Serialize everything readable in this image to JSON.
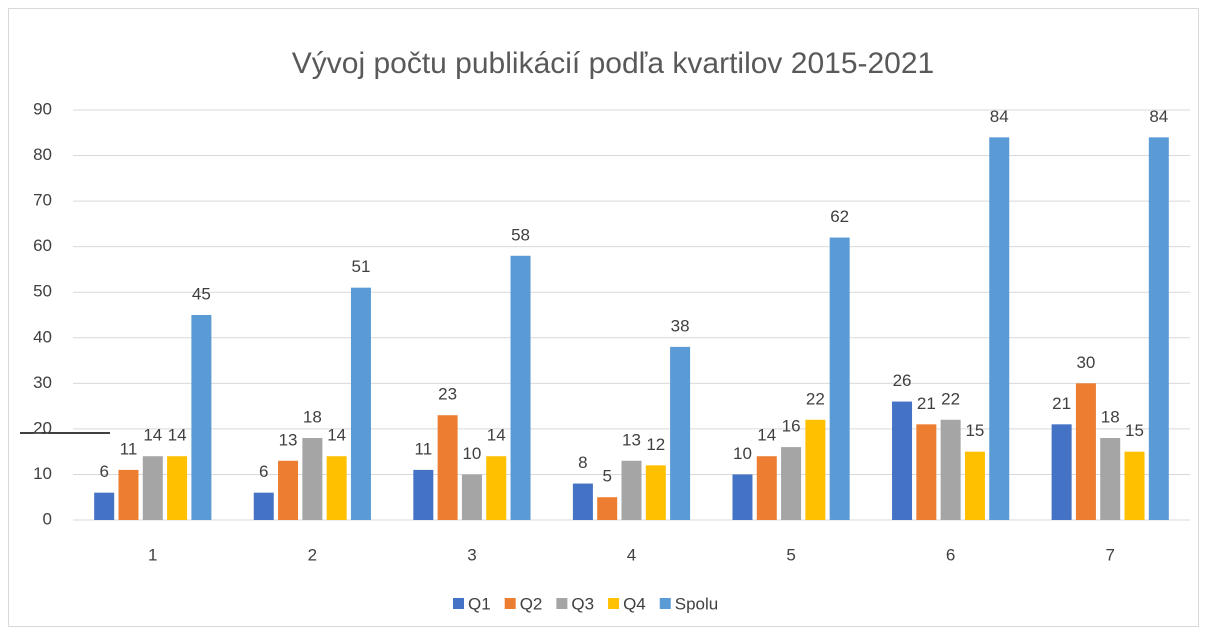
{
  "chart_data": {
    "type": "bar",
    "title": "Vývoj počtu publikácií podľa kvartilov 2015-2021",
    "categories": [
      "1",
      "2",
      "3",
      "4",
      "5",
      "6",
      "7"
    ],
    "series": [
      {
        "name": "Q1",
        "color": "#4472c4",
        "values": [
          6,
          6,
          11,
          8,
          10,
          26,
          21
        ]
      },
      {
        "name": "Q2",
        "color": "#ed7d31",
        "values": [
          11,
          13,
          23,
          5,
          14,
          21,
          30
        ]
      },
      {
        "name": "Q3",
        "color": "#a5a5a5",
        "values": [
          14,
          18,
          10,
          13,
          16,
          22,
          18
        ]
      },
      {
        "name": "Q4",
        "color": "#ffc000",
        "values": [
          14,
          14,
          14,
          12,
          22,
          15,
          15
        ]
      },
      {
        "name": "Spolu",
        "color": "#5b9bd5",
        "values": [
          45,
          51,
          58,
          38,
          62,
          84,
          84
        ]
      }
    ],
    "ylim": [
      0,
      90
    ],
    "yticks": [
      0,
      10,
      20,
      30,
      40,
      50,
      60,
      70,
      80,
      90
    ],
    "grid": true,
    "legend": "bottom"
  }
}
